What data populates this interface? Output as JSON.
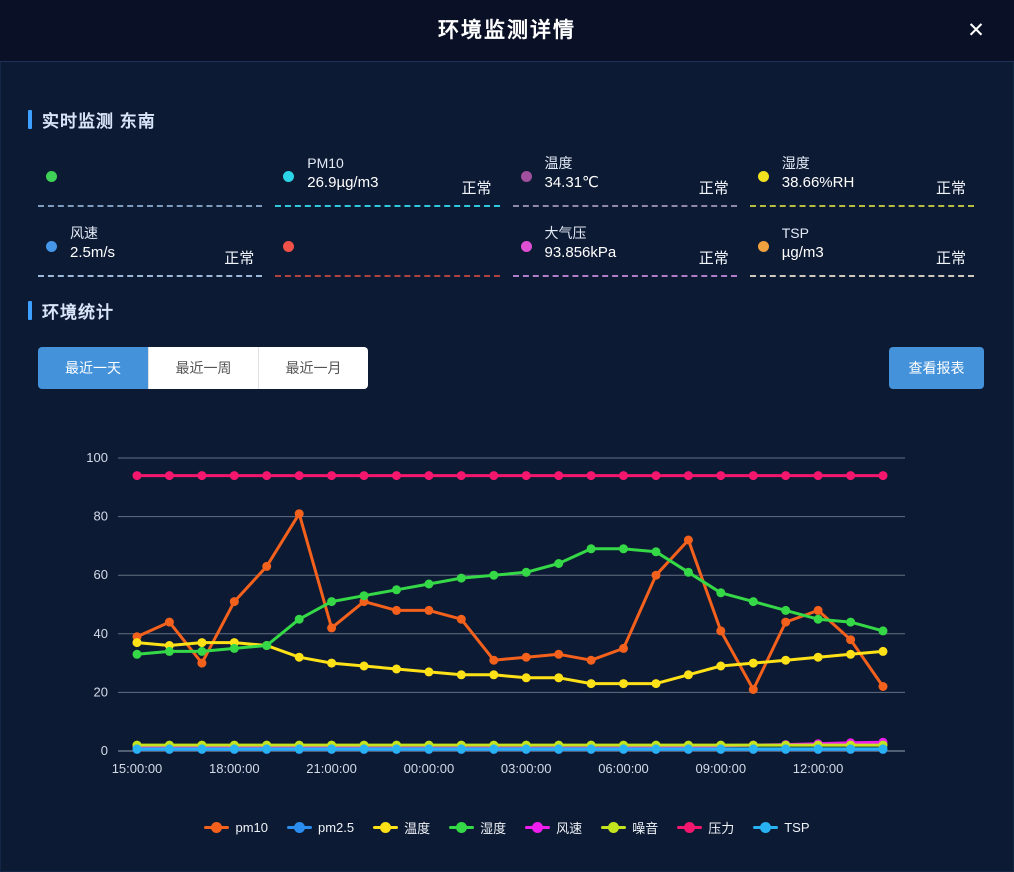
{
  "header": {
    "title": "环境监测详情",
    "close_label": "✕"
  },
  "sections": {
    "realtime_title": "实时监测 东南",
    "stats_title": "环境统计"
  },
  "colors": {
    "accent": "#3d9fff",
    "tab_active": "#4492da",
    "background": "#0d1a33",
    "header_bg": "#0a1126"
  },
  "cards": [
    {
      "label": "",
      "value": "",
      "status": "",
      "dot_color": "#3fd157",
      "border_color": "#7e9cc0"
    },
    {
      "label": "PM10",
      "value": "26.9µg/m3",
      "status": "正常",
      "dot_color": "#2bd4e6",
      "border_color": "#2fc8dc"
    },
    {
      "label": "温度",
      "value": "34.31℃",
      "status": "正常",
      "dot_color": "#a14f9e",
      "border_color": "#9088a8"
    },
    {
      "label": "湿度",
      "value": "38.66%RH",
      "status": "正常",
      "dot_color": "#f2e11f",
      "border_color": "#b8bc40"
    },
    {
      "label": "风速",
      "value": "2.5m/s",
      "status": "正常",
      "dot_color": "#4596e8",
      "border_color": "#9db8d8"
    },
    {
      "label": "",
      "value": "",
      "status": "",
      "dot_color": "#f0524a",
      "border_color": "#b0433e"
    },
    {
      "label": "大气压",
      "value": "93.856kPa",
      "status": "正常",
      "dot_color": "#df4fd4",
      "border_color": "#b07cc8"
    },
    {
      "label": "TSP",
      "value": "µg/m3",
      "status": "正常",
      "dot_color": "#f0a03c",
      "border_color": "#cfc9bd"
    }
  ],
  "tabs": {
    "items": [
      "最近一天",
      "最近一周",
      "最近一月"
    ],
    "active_index": 0
  },
  "report_button": "查看报表",
  "chart_data": {
    "type": "line",
    "title": "",
    "xlabel": "",
    "ylabel": "",
    "ylim": [
      0,
      100
    ],
    "ytick": 20,
    "grid": true,
    "legend_position": "bottom",
    "tick_every": 3,
    "categories": [
      "15:00:00",
      "16:00:00",
      "17:00:00",
      "18:00:00",
      "19:00:00",
      "20:00:00",
      "21:00:00",
      "22:00:00",
      "23:00:00",
      "00:00:00",
      "01:00:00",
      "02:00:00",
      "03:00:00",
      "04:00:00",
      "05:00:00",
      "06:00:00",
      "07:00:00",
      "08:00:00",
      "09:00:00",
      "10:00:00",
      "11:00:00",
      "12:00:00",
      "13:00:00",
      "14:00:00"
    ],
    "series": [
      {
        "name": "pm10",
        "color": "#f4611c",
        "values": [
          39,
          44,
          30,
          51,
          63,
          81,
          42,
          51,
          48,
          48,
          45,
          31,
          32,
          33,
          31,
          35,
          60,
          72,
          41,
          21,
          44,
          48,
          38,
          22
        ]
      },
      {
        "name": "pm2.5",
        "color": "#2b8df0",
        "values": [
          0.5,
          0.5,
          0.5,
          0.5,
          0.5,
          0.5,
          0.5,
          0.5,
          0.5,
          0.5,
          0.5,
          0.5,
          0.5,
          0.5,
          0.5,
          0.5,
          0.5,
          0.5,
          0.5,
          0.5,
          0.5,
          0.5,
          0.5,
          0.5
        ]
      },
      {
        "name": "温度",
        "color": "#ffe118",
        "values": [
          37,
          36,
          37,
          37,
          36,
          32,
          30,
          29,
          28,
          27,
          26,
          26,
          25,
          25,
          23,
          23,
          23,
          26,
          29,
          30,
          31,
          32,
          33,
          34
        ]
      },
      {
        "name": "湿度",
        "color": "#35d846",
        "values": [
          33,
          34,
          34,
          35,
          36,
          45,
          51,
          53,
          55,
          57,
          59,
          60,
          61,
          64,
          69,
          69,
          68,
          61,
          54,
          51,
          48,
          45,
          44,
          41
        ]
      },
      {
        "name": "风速",
        "color": "#ee1eee",
        "values": [
          1.5,
          1.5,
          1.5,
          1.5,
          1.5,
          1.2,
          1.2,
          1,
          1,
          1,
          1,
          1,
          1,
          1,
          1,
          1,
          1.2,
          1.5,
          1.8,
          2,
          2.2,
          2.5,
          2.8,
          3
        ]
      },
      {
        "name": "噪音",
        "color": "#c3e31e",
        "values": [
          2,
          2,
          2,
          2,
          2,
          2,
          2,
          2,
          2,
          2,
          2,
          2,
          2,
          2,
          2,
          2,
          2,
          2,
          2,
          2,
          2,
          2,
          2,
          2
        ]
      },
      {
        "name": "压力",
        "color": "#f5176e",
        "values": [
          94,
          94,
          94,
          94,
          94,
          94,
          94,
          94,
          94,
          94,
          94,
          94,
          94,
          94,
          94,
          94,
          94,
          94,
          94,
          94,
          94,
          94,
          94,
          94
        ]
      },
      {
        "name": "TSP",
        "color": "#29b2f2",
        "values": [
          0.7,
          0.7,
          0.7,
          0.7,
          0.7,
          0.7,
          0.7,
          0.7,
          0.7,
          0.7,
          0.7,
          0.7,
          0.7,
          0.7,
          0.7,
          0.7,
          0.7,
          0.7,
          0.7,
          0.7,
          0.7,
          0.7,
          0.7,
          0.7
        ]
      }
    ]
  }
}
